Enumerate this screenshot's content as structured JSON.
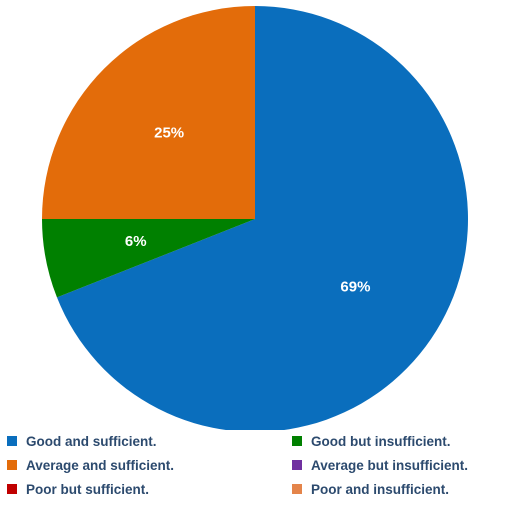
{
  "chart_data": {
    "type": "pie",
    "title": "",
    "slices": [
      {
        "label": "Good and sufficient.",
        "value": 69,
        "display": "69%",
        "color": "#0a6ebd"
      },
      {
        "label": "Good but insufficient.",
        "value": 6,
        "display": "6%",
        "color": "#008000"
      },
      {
        "label": "Average and sufficient.",
        "value": 25,
        "display": "25%",
        "color": "#e36c0a"
      },
      {
        "label": "Average but insufficient.",
        "value": 0,
        "display": "",
        "color": "#7030a0"
      },
      {
        "label": "Poor but sufficient.",
        "value": 0,
        "display": "",
        "color": "#c00000"
      },
      {
        "label": "Poor and insufficient.",
        "value": 0,
        "display": "",
        "color": "#e4844a"
      }
    ],
    "start_angle": "12 o'clock",
    "direction": "clockwise",
    "legend_position": "bottom"
  },
  "legend": {
    "items": [
      {
        "label": "Good and sufficient.",
        "color": "#0a6ebd"
      },
      {
        "label": "Good but insufficient.",
        "color": "#008000"
      },
      {
        "label": "Average and sufficient.",
        "color": "#e36c0a"
      },
      {
        "label": "Average but insufficient.",
        "color": "#7030a0"
      },
      {
        "label": "Poor but sufficient.",
        "color": "#c00000"
      },
      {
        "label": "Poor and insufficient.",
        "color": "#e4844a"
      }
    ]
  }
}
